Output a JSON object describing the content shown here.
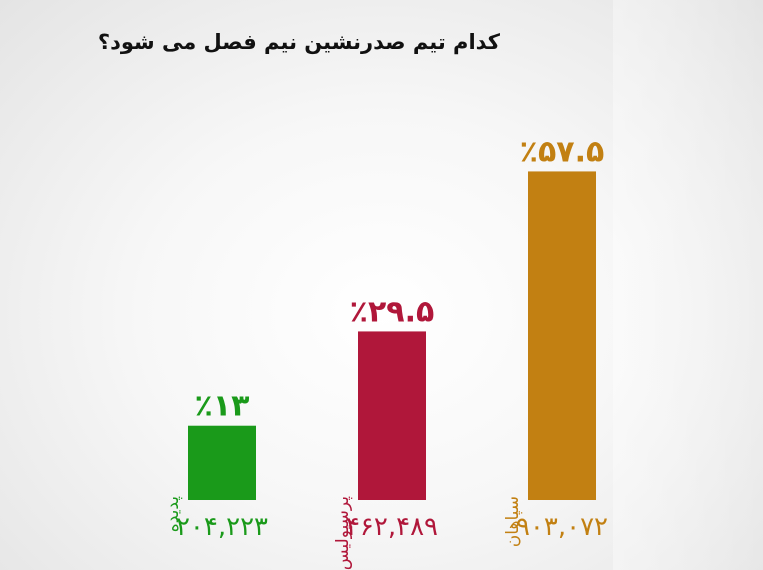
{
  "chart_data": {
    "type": "bar",
    "title": "کدام تیم صدرنشین نیم فصل می شود؟",
    "categories": [
      "پدیده",
      "پرسپولیس",
      "سپاهان"
    ],
    "values": [
      13,
      29.5,
      57.5
    ],
    "value_labels": [
      "٪۱۳",
      "٪۲۹.۵",
      "٪۵۷.۵"
    ],
    "counts": [
      "۲۰۴,۲۲۳",
      "۴۶۲,۴۸۹",
      "۹۰۳,۰۷۲"
    ],
    "colors": [
      "#1a9a1a",
      "#b0173a",
      "#c28012"
    ],
    "ylim": [
      0,
      60
    ],
    "grid": false
  }
}
